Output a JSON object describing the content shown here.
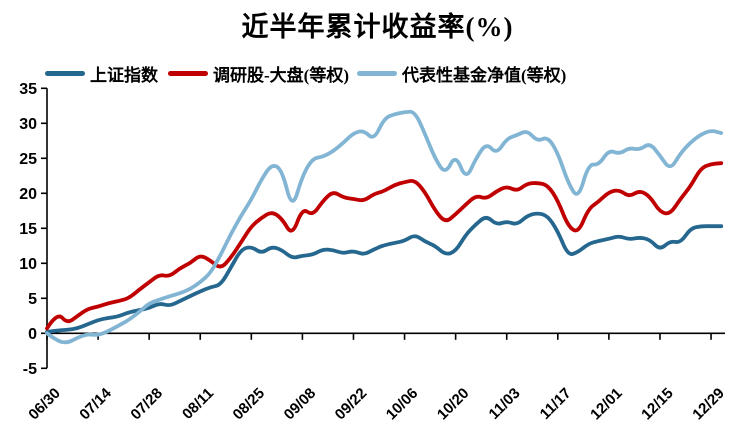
{
  "title": "近半年累计收益率(%)",
  "chart_data": {
    "type": "line",
    "title": "近半年累计收益率(%)",
    "legend_position": "top",
    "grid": false,
    "x_axis": {
      "tick_labels": [
        "06/30",
        "07/14",
        "07/28",
        "08/11",
        "08/25",
        "09/08",
        "09/22",
        "10/06",
        "10/20",
        "11/03",
        "11/17",
        "12/01",
        "12/15",
        "12/29"
      ],
      "tick_interval_trading_days": 10,
      "labels_rotated_degrees": 45
    },
    "y_axis": {
      "ticks": [
        -5,
        0,
        5,
        10,
        15,
        20,
        25,
        30,
        35
      ],
      "min": -5,
      "max": 35,
      "axis_crosses_at": 0
    },
    "sample_step_trading_days": 2,
    "series": [
      {
        "name": "上证指数",
        "color": "#25678e",
        "values": [
          0.2,
          0.4,
          0.5,
          0.7,
          1.3,
          1.9,
          2.2,
          2.4,
          3.0,
          3.3,
          3.6,
          4.3,
          3.9,
          4.6,
          5.3,
          6.0,
          6.6,
          6.9,
          9.4,
          12.0,
          12.4,
          11.4,
          12.4,
          11.9,
          10.7,
          11.1,
          11.2,
          12.0,
          11.9,
          11.4,
          11.8,
          11.2,
          12.0,
          12.6,
          12.9,
          13.2,
          14.1,
          13.1,
          12.5,
          11.2,
          11.7,
          14.1,
          15.6,
          16.8,
          15.5,
          16.0,
          15.5,
          16.8,
          17.2,
          16.8,
          14.6,
          11.1,
          11.6,
          12.8,
          13.2,
          13.5,
          13.9,
          13.4,
          13.7,
          13.4,
          11.9,
          13.2,
          12.9,
          15.0,
          15.3,
          15.3,
          15.3
        ]
      },
      {
        "name": "调研股-大盘(等权)",
        "color": "#c00000",
        "values": [
          0.7,
          3.0,
          1.4,
          2.5,
          3.5,
          3.8,
          4.3,
          4.6,
          5.0,
          6.2,
          7.3,
          8.4,
          8.1,
          9.3,
          10.0,
          11.2,
          10.4,
          9.2,
          10.8,
          13.0,
          15.3,
          16.5,
          17.4,
          16.4,
          13.9,
          17.9,
          16.8,
          18.9,
          20.3,
          19.4,
          19.2,
          18.9,
          19.9,
          20.3,
          21.2,
          21.6,
          21.9,
          20.2,
          17.5,
          15.8,
          17.0,
          18.4,
          19.7,
          19.2,
          20.3,
          21.0,
          20.3,
          21.4,
          21.5,
          21.2,
          19.0,
          15.3,
          14.3,
          17.8,
          18.8,
          20.2,
          20.5,
          19.5,
          20.4,
          19.6,
          17.3,
          17.0,
          19.2,
          21.0,
          23.6,
          24.2,
          24.3
        ]
      },
      {
        "name": "代表性基金净值(等权)",
        "color": "#82b5d3",
        "values": [
          0.0,
          -1.1,
          -1.4,
          -0.6,
          -0.1,
          -0.3,
          0.3,
          1.1,
          1.9,
          3.0,
          4.3,
          4.8,
          5.3,
          5.7,
          6.3,
          7.3,
          8.6,
          11.2,
          14.2,
          16.8,
          19.1,
          22.0,
          24.2,
          23.4,
          17.6,
          22.5,
          25.0,
          25.2,
          26.0,
          27.2,
          28.6,
          29.0,
          27.6,
          30.7,
          31.3,
          31.6,
          31.7,
          28.5,
          24.9,
          22.7,
          25.6,
          21.9,
          25.0,
          27.2,
          25.6,
          27.8,
          28.3,
          29.0,
          27.4,
          28.1,
          25.8,
          21.5,
          19.1,
          24.2,
          24.0,
          26.2,
          25.6,
          26.5,
          26.2,
          27.2,
          25.4,
          23.3,
          25.7,
          27.3,
          28.4,
          29.0,
          28.6
        ]
      }
    ]
  }
}
